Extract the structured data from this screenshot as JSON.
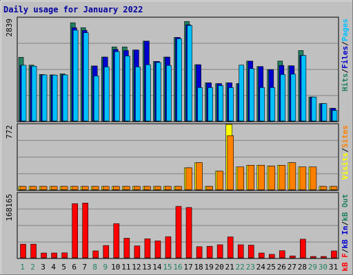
{
  "chart_data": [
    {
      "type": "bar",
      "title": "Daily usage for January 2022",
      "categories": [
        "1",
        "2",
        "3",
        "4",
        "5",
        "6",
        "7",
        "8",
        "9",
        "10",
        "11",
        "12",
        "13",
        "14",
        "15",
        "16",
        "17",
        "18",
        "19",
        "20",
        "21",
        "22",
        "23",
        "24",
        "25",
        "26",
        "27",
        "28",
        "29",
        "30",
        "31"
      ],
      "weekend_days": [
        "1",
        "2",
        "8",
        "9",
        "15",
        "16",
        "22",
        "23",
        "29",
        "30"
      ],
      "y_max_label": "2839",
      "ylim": [
        0,
        2839
      ],
      "grid": true,
      "right_label_parts": [
        "Hits",
        "Files",
        "Pages"
      ],
      "series": [
        {
          "name": "Hits",
          "color": "#208060",
          "values": [
            1755,
            1540,
            1280,
            1270,
            1300,
            2705,
            2570,
            1515,
            1760,
            2040,
            2040,
            1955,
            2200,
            1640,
            1760,
            2300,
            2740,
            1550,
            1050,
            1030,
            1050,
            1030,
            1650,
            1500,
            1415,
            1650,
            1520,
            1940,
            660,
            480,
            350
          ]
        },
        {
          "name": "Files",
          "color": "#0000d0",
          "values": [
            1535,
            1510,
            1270,
            1265,
            1270,
            2570,
            2495,
            1515,
            1760,
            1970,
            1940,
            1955,
            2200,
            1640,
            1760,
            2300,
            2650,
            1550,
            1050,
            1030,
            1050,
            1030,
            1650,
            1500,
            1415,
            1530,
            1520,
            1805,
            660,
            480,
            350
          ]
        },
        {
          "name": "Pages",
          "color": "#00c0ff",
          "values": [
            1535,
            1510,
            1270,
            1265,
            1270,
            2500,
            2430,
            1240,
            1490,
            1910,
            1790,
            1490,
            1550,
            1610,
            1530,
            2265,
            2630,
            920,
            920,
            975,
            920,
            1540,
            1440,
            920,
            920,
            1280,
            1290,
            1805,
            660,
            480,
            290
          ]
        }
      ]
    },
    {
      "type": "bar",
      "y_max_label": "772",
      "ylim": [
        0,
        772
      ],
      "grid": true,
      "right_label_parts": [
        "Visits",
        "Sites"
      ],
      "series": [
        {
          "name": "Visits",
          "color": "#ffff00",
          "values": [
            40,
            40,
            40,
            40,
            40,
            40,
            40,
            40,
            40,
            40,
            40,
            40,
            40,
            40,
            40,
            40,
            260,
            320,
            40,
            220,
            772,
            270,
            290,
            290,
            280,
            290,
            320,
            270,
            270,
            40,
            40
          ]
        },
        {
          "name": "Sites",
          "color": "#ff8000",
          "values": [
            40,
            40,
            40,
            40,
            40,
            40,
            40,
            40,
            40,
            40,
            40,
            40,
            40,
            40,
            40,
            40,
            260,
            320,
            40,
            220,
            640,
            270,
            290,
            290,
            280,
            290,
            320,
            270,
            270,
            40,
            40
          ]
        }
      ]
    },
    {
      "type": "bar",
      "y_max_label": "168165",
      "ylim": [
        0,
        168165
      ],
      "grid": true,
      "right_label_parts": [
        "kB F",
        "kB In",
        "kB Out"
      ],
      "series": [
        {
          "name": "kB F",
          "color": "#ff0000",
          "values": [
            35500,
            35500,
            12500,
            12500,
            13000,
            141000,
            142500,
            18000,
            32000,
            89000,
            51000,
            31000,
            49500,
            44000,
            55000,
            134000,
            131000,
            29000,
            30000,
            34000,
            54500,
            34000,
            33000,
            12500,
            9000,
            18500,
            5000,
            48500,
            2500,
            2500,
            18000
          ]
        }
      ]
    }
  ]
}
